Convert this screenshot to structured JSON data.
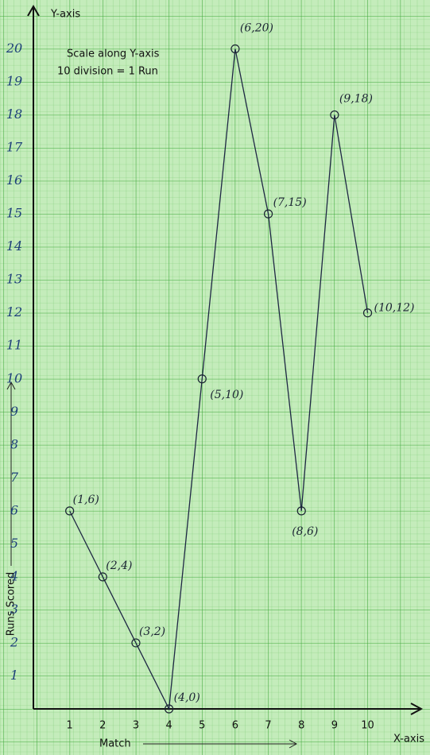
{
  "chart_data": {
    "type": "line",
    "y_axis_label": "Y-axis",
    "x_axis_label": "X-axis",
    "y_title": "Runs Scored",
    "x_title": "Match",
    "annotations": [
      "Scale along Y-axis",
      "10 division = 1 Run"
    ],
    "x": [
      1,
      2,
      3,
      4,
      5,
      6,
      7,
      8,
      9,
      10
    ],
    "series": [
      {
        "color": "#1e2744",
        "values": [
          6,
          4,
          2,
          0,
          10,
          20,
          15,
          6,
          18,
          12
        ],
        "value_labels": [
          "(1,6)",
          "(2,4)",
          "(3,2)",
          "(4,0)",
          "(5,10)",
          "(6,20)",
          "(7,15)",
          "(8,6)",
          "(9,18)",
          "(10,12)"
        ]
      }
    ],
    "xlim": [
      0,
      11.5
    ],
    "ylim": [
      0,
      21
    ],
    "xticks": [
      1,
      2,
      3,
      4,
      5,
      6,
      7,
      8,
      9,
      10
    ],
    "yticks": [
      1,
      2,
      3,
      4,
      5,
      6,
      7,
      8,
      9,
      10,
      11,
      12,
      13,
      14,
      15,
      16,
      17,
      18,
      19,
      20
    ],
    "grid": true
  }
}
